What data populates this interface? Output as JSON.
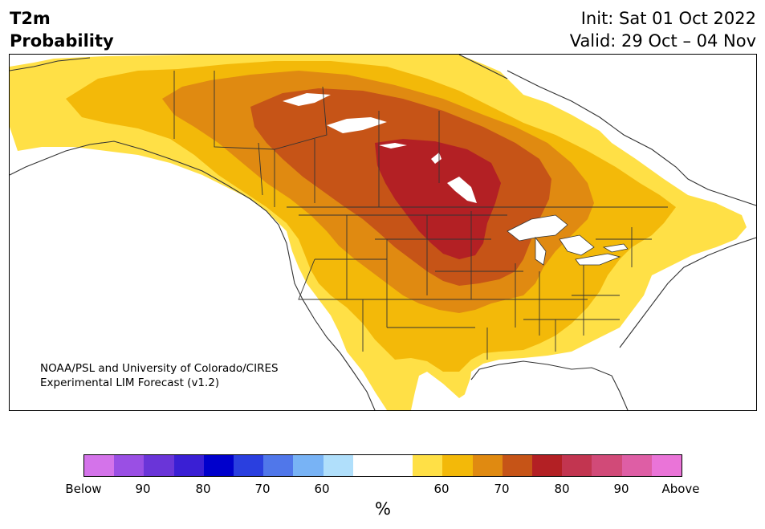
{
  "header": {
    "title_line1": "T2m",
    "title_line2": "Probability",
    "init": "Init: Sat 01 Oct 2022",
    "valid": "Valid: 29 Oct – 04 Nov"
  },
  "credit": {
    "line1": "NOAA/PSL and University of Colorado/CIRES",
    "line2": "Experimental LIM Forecast (v1.2)"
  },
  "colorbar": {
    "colors": [
      "#d473ea",
      "#9a4fe4",
      "#6a35d8",
      "#3a1fd4",
      "#0000cc",
      "#2a3fdf",
      "#5077ea",
      "#78b3f5",
      "#b0dffb",
      "#ffffff",
      "#ffffff",
      "#ffe046",
      "#f3b909",
      "#e08a11",
      "#c65417",
      "#b32024",
      "#c23550",
      "#d14a78",
      "#de5ea5",
      "#ea74d8"
    ],
    "labels": [
      "Below",
      "90",
      "80",
      "70",
      "60",
      "60",
      "70",
      "80",
      "90",
      "Above"
    ],
    "unit": "%"
  },
  "map": {
    "category_colors": {
      "above_50": "#ffe046",
      "above_60": "#f3b909",
      "above_70": "#e08a11",
      "above_75": "#c65417",
      "above_80": "#b32024",
      "below_60": "#b0dffb"
    }
  }
}
